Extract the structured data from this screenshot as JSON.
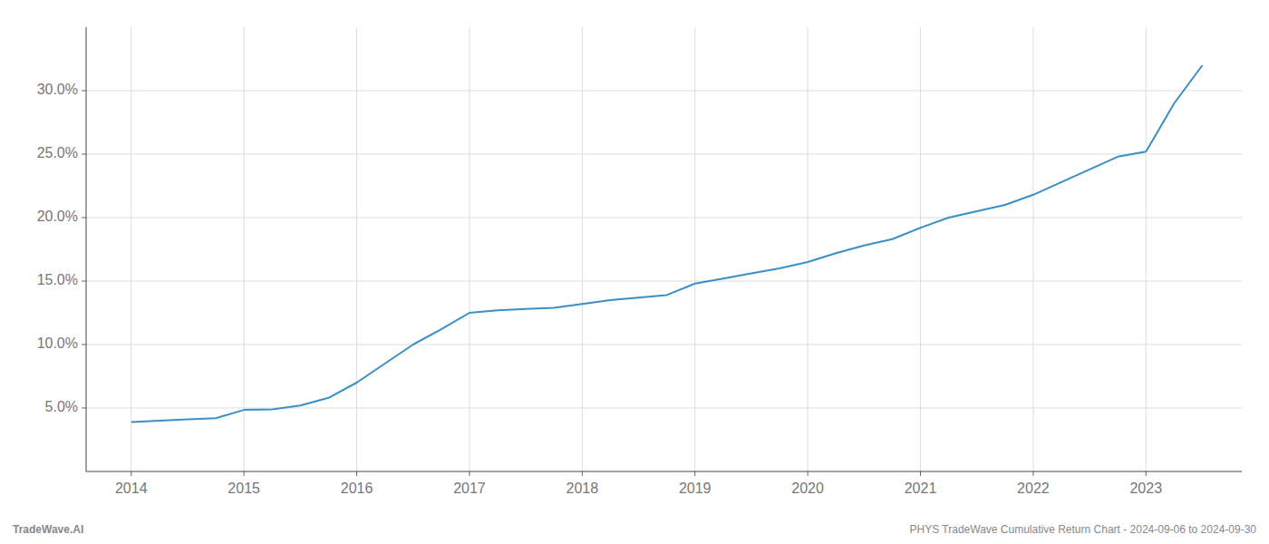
{
  "chart_data": {
    "type": "line",
    "x": [
      2014,
      2014.25,
      2014.5,
      2014.75,
      2015,
      2015.25,
      2015.5,
      2015.75,
      2016,
      2016.25,
      2016.5,
      2016.75,
      2017,
      2017.25,
      2017.5,
      2017.75,
      2018,
      2018.25,
      2018.5,
      2018.75,
      2019,
      2019.25,
      2019.5,
      2019.75,
      2020,
      2020.25,
      2020.5,
      2020.75,
      2021,
      2021.25,
      2021.5,
      2021.75,
      2022,
      2022.25,
      2022.5,
      2022.75,
      2023,
      2023.25,
      2023.5
    ],
    "values": [
      3.9,
      4.0,
      4.1,
      4.2,
      4.85,
      4.9,
      5.2,
      5.8,
      7.0,
      8.5,
      10.0,
      11.2,
      12.5,
      12.7,
      12.8,
      12.9,
      13.2,
      13.5,
      13.7,
      13.9,
      14.8,
      15.2,
      15.6,
      16.0,
      16.5,
      17.2,
      17.8,
      18.3,
      19.2,
      20.0,
      20.5,
      21.0,
      21.8,
      22.8,
      23.8,
      24.8,
      25.2,
      29.0,
      32.0
    ],
    "color": "#3a8fc7",
    "xlim": [
      2013.6,
      2023.85
    ],
    "ylim": [
      0,
      35
    ],
    "xticks": [
      2014,
      2015,
      2016,
      2017,
      2018,
      2019,
      2020,
      2021,
      2022,
      2023
    ],
    "yticks": [
      {
        "value": 5.0,
        "label": "5.0%"
      },
      {
        "value": 10.0,
        "label": "10.0%"
      },
      {
        "value": 15.0,
        "label": "15.0%"
      },
      {
        "value": 20.0,
        "label": "20.0%"
      },
      {
        "value": 25.0,
        "label": "25.0%"
      },
      {
        "value": 30.0,
        "label": "30.0%"
      }
    ],
    "grid": true,
    "annotations": [
      "TradeWave.AI",
      "PHYS TradeWave Cumulative Return Chart - 2024-09-06 to 2024-09-30"
    ]
  }
}
